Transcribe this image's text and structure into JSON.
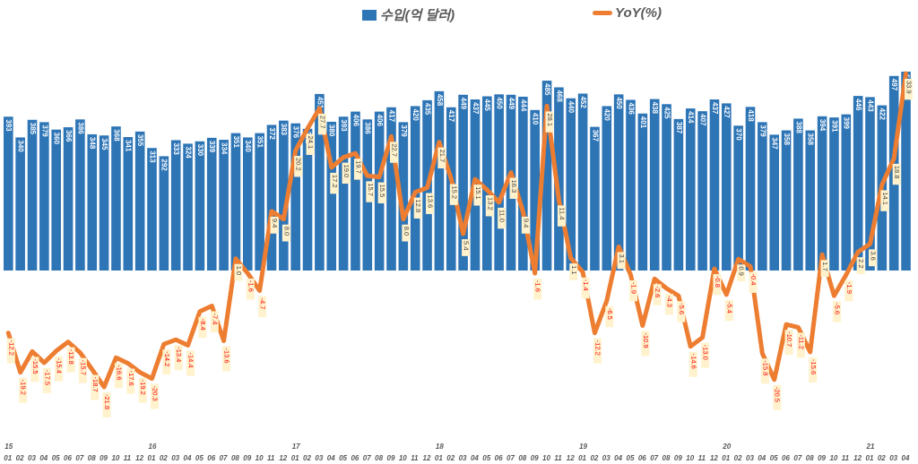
{
  "legend": {
    "bar_label": "수입(억 달러)",
    "line_label": "YoY(%)"
  },
  "colors": {
    "bar": "#2e75b6",
    "line": "#ed7d31",
    "label_bg": "#fff2cc",
    "neg_text": "#ff0000",
    "pos_text": "#404040"
  },
  "chart_data": {
    "type": "bar+line",
    "title": "",
    "xlabel": "",
    "ylabel": "",
    "categories": [
      "15-01",
      "15-02",
      "15-03",
      "15-04",
      "15-05",
      "15-06",
      "15-07",
      "15-08",
      "15-09",
      "15-10",
      "15-11",
      "15-12",
      "16-01",
      "16-02",
      "16-03",
      "16-04",
      "16-05",
      "16-06",
      "16-07",
      "16-08",
      "16-09",
      "16-10",
      "16-11",
      "16-12",
      "17-01",
      "17-02",
      "17-03",
      "17-04",
      "17-05",
      "17-06",
      "17-07",
      "17-08",
      "17-09",
      "17-10",
      "17-11",
      "17-12",
      "18-01",
      "18-02",
      "18-03",
      "18-04",
      "18-05",
      "18-06",
      "18-07",
      "18-08",
      "18-09",
      "18-10",
      "18-11",
      "18-12",
      "19-01",
      "19-02",
      "19-03",
      "19-04",
      "19-05",
      "19-06",
      "19-07",
      "19-08",
      "19-09",
      "19-10",
      "19-11",
      "19-12",
      "20-01",
      "20-02",
      "20-03",
      "20-04",
      "20-05",
      "20-06",
      "20-07",
      "20-08",
      "20-09",
      "20-10",
      "20-11",
      "20-12",
      "21-01",
      "21-02",
      "21-03",
      "21-04"
    ],
    "year_labels": [
      {
        "index": 0,
        "label": "15"
      },
      {
        "index": 12,
        "label": "16"
      },
      {
        "index": 24,
        "label": "17"
      },
      {
        "index": 36,
        "label": "18"
      },
      {
        "index": 48,
        "label": "19"
      },
      {
        "index": 60,
        "label": "20"
      },
      {
        "index": 72,
        "label": "21"
      }
    ],
    "month_labels": [
      "01",
      "02",
      "03",
      "04",
      "05",
      "06",
      "07",
      "08",
      "09",
      "10",
      "11",
      "12"
    ],
    "series": [
      {
        "name": "수입(억 달러)",
        "type": "bar",
        "values": [
          393,
          340,
          385,
          379,
          360,
          366,
          386,
          348,
          345,
          368,
          341,
          355,
          313,
          292,
          333,
          324,
          330,
          339,
          334,
          351,
          340,
          351,
          372,
          383,
          376,
          362,
          451,
          380,
          393,
          406,
          386,
          406,
          417,
          379,
          420,
          435,
          458,
          417,
          449,
          437,
          445,
          450,
          449,
          444,
          410,
          485,
          468,
          440,
          452,
          367,
          420,
          450,
          436,
          401,
          438,
          425,
          387,
          414,
          407,
          437,
          427,
          370,
          418,
          379,
          347,
          358,
          388,
          358,
          394,
          391,
          399,
          446,
          443,
          422,
          497,
          508
        ]
      },
      {
        "name": "YoY(%)",
        "type": "line",
        "values": [
          -12.2,
          -19.2,
          -15.5,
          -17.5,
          -15.4,
          -13.8,
          -15.7,
          -18.7,
          -21.8,
          -16.6,
          -17.6,
          -19.2,
          -20.3,
          -14.2,
          -13.4,
          -14.4,
          -8.4,
          -7.4,
          -13.6,
          1.0,
          -1.6,
          -4.7,
          9.4,
          8.0,
          20.2,
          24.1,
          27.7,
          17.2,
          19.0,
          19.7,
          15.7,
          15.5,
          22.7,
          8.0,
          12.8,
          13.6,
          21.7,
          15.2,
          5.4,
          15.1,
          13.2,
          11.0,
          16.3,
          9.4,
          -1.6,
          28.1,
          11.4,
          1.1,
          -1.4,
          -12.2,
          -6.5,
          3.1,
          -1.9,
          -10.9,
          -2.6,
          -4.3,
          -5.6,
          -14.6,
          -13.0,
          -0.8,
          -5.4,
          0.9,
          -0.4,
          -15.8,
          -20.5,
          -10.7,
          -11.2,
          -15.6,
          1.7,
          -5.6,
          -1.9,
          2.2,
          3.6,
          14.1,
          18.8,
          33.9
        ]
      }
    ],
    "legend_position": "top",
    "grid": false
  }
}
